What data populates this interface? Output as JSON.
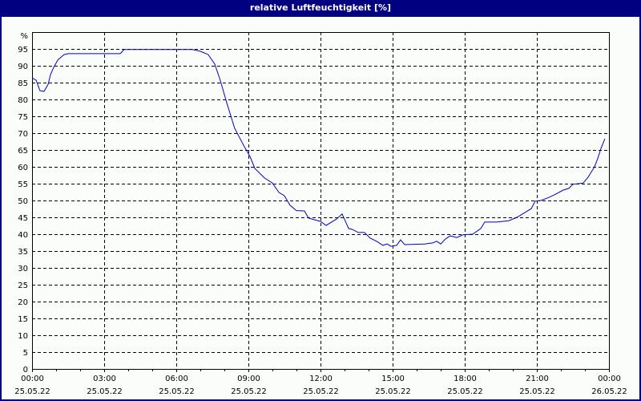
{
  "window": {
    "title": "relative Luftfeuchtigkeit [%]"
  },
  "colors": {
    "titlebar": "#000080",
    "line": "#0000c0",
    "grid": "#000000",
    "background": "#fbfdfb"
  },
  "chart_data": {
    "type": "line",
    "title": "relative Luftfeuchtigkeit [%]",
    "xlabel": "",
    "ylabel": "%",
    "ylim": [
      0,
      100
    ],
    "xlim_hours": [
      0,
      24
    ],
    "grid": true,
    "grid_style": "dashed",
    "legend": "none",
    "y_ticks": [
      0,
      5,
      10,
      15,
      20,
      25,
      30,
      35,
      40,
      45,
      50,
      55,
      60,
      65,
      70,
      75,
      80,
      85,
      90,
      95
    ],
    "y_unit_label": "%",
    "x_ticks": [
      {
        "time": "00:00",
        "date": "25.05.22"
      },
      {
        "time": "03:00",
        "date": "25.05.22"
      },
      {
        "time": "06:00",
        "date": "25.05.22"
      },
      {
        "time": "09:00",
        "date": "25.05.22"
      },
      {
        "time": "12:00",
        "date": "25.05.22"
      },
      {
        "time": "15:00",
        "date": "25.05.22"
      },
      {
        "time": "18:00",
        "date": "25.05.22"
      },
      {
        "time": "21:00",
        "date": "25.05.22"
      },
      {
        "time": "00:00",
        "date": "26.05.22"
      }
    ],
    "series": [
      {
        "name": "relative Luftfeuchtigkeit",
        "x_hours": [
          0,
          0.17,
          0.33,
          0.5,
          0.67,
          0.77,
          0.9,
          1.07,
          1.33,
          1.5,
          3.67,
          3.83,
          6.67,
          7.0,
          7.33,
          7.6,
          7.83,
          8.1,
          8.43,
          8.83,
          9.07,
          9.27,
          9.67,
          10.0,
          10.27,
          10.5,
          10.73,
          11.0,
          11.33,
          11.5,
          11.73,
          12.0,
          12.23,
          12.67,
          12.9,
          13.17,
          13.33,
          13.57,
          13.83,
          14.07,
          14.33,
          14.6,
          14.77,
          14.93,
          15.17,
          15.33,
          15.5,
          16.33,
          16.67,
          16.83,
          17.0,
          17.2,
          17.4,
          17.67,
          17.93,
          18.33,
          18.67,
          18.83,
          19.33,
          19.83,
          20.17,
          20.5,
          20.77,
          20.93,
          21.17,
          21.5,
          21.73,
          22.1,
          22.33,
          22.5,
          22.93,
          23.13,
          23.4,
          23.53,
          23.67,
          23.83
        ],
        "values": [
          86.4,
          85.7,
          82.6,
          82.4,
          84.5,
          87.4,
          89.5,
          91.7,
          93.3,
          93.6,
          93.6,
          94.8,
          94.8,
          94.3,
          93.3,
          90.5,
          85.7,
          79.0,
          71.4,
          66.0,
          63.0,
          59.5,
          56.7,
          55.2,
          52.4,
          51.4,
          48.6,
          47.0,
          46.9,
          44.8,
          44.3,
          43.8,
          42.6,
          44.5,
          46.0,
          41.7,
          41.4,
          40.5,
          40.5,
          38.8,
          37.9,
          36.7,
          37.1,
          36.4,
          36.7,
          38.3,
          36.9,
          37.1,
          37.4,
          37.9,
          37.1,
          38.6,
          39.5,
          39.0,
          39.8,
          40.0,
          41.7,
          43.6,
          43.6,
          44.0,
          45.0,
          46.4,
          47.6,
          49.8,
          50.0,
          50.9,
          51.7,
          53.1,
          53.6,
          54.8,
          55.2,
          56.9,
          60.0,
          62.4,
          65.5,
          68.3
        ]
      }
    ]
  }
}
